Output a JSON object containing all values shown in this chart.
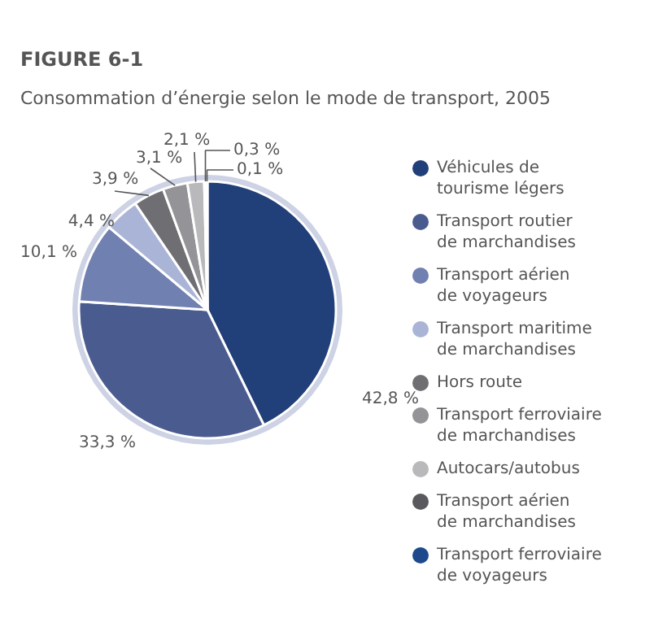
{
  "chart_data": {
    "type": "pie",
    "title": "FIGURE 6-1",
    "subtitle": "Consommation d’énergie selon le mode de transport, 2005",
    "categories": [
      "Véhicules de tourisme légers",
      "Transport routier de marchandises",
      "Transport aérien de voyageurs",
      "Transport maritime de marchandises",
      "Hors route",
      "Transport ferroviaire de marchandises",
      "Autocars/autobus",
      "Transport aérien de marchandises",
      "Transport ferroviaire de voyageurs"
    ],
    "values": [
      42.8,
      33.3,
      10.1,
      4.4,
      3.9,
      3.1,
      2.1,
      0.3,
      0.1
    ],
    "colors": [
      "#213f78",
      "#4a5b8f",
      "#7080b0",
      "#aab4d6",
      "#6f6f73",
      "#949498",
      "#b9b9bc",
      "#5a5a5e",
      "#1e4a8c"
    ],
    "value_labels": [
      "42,8 %",
      "33,3 %",
      "10,1 %",
      "4,4 %",
      "3,9 %",
      "3,1 %",
      "2,1 %",
      "0,3 %",
      "0,1 %"
    ],
    "legend": "right"
  }
}
